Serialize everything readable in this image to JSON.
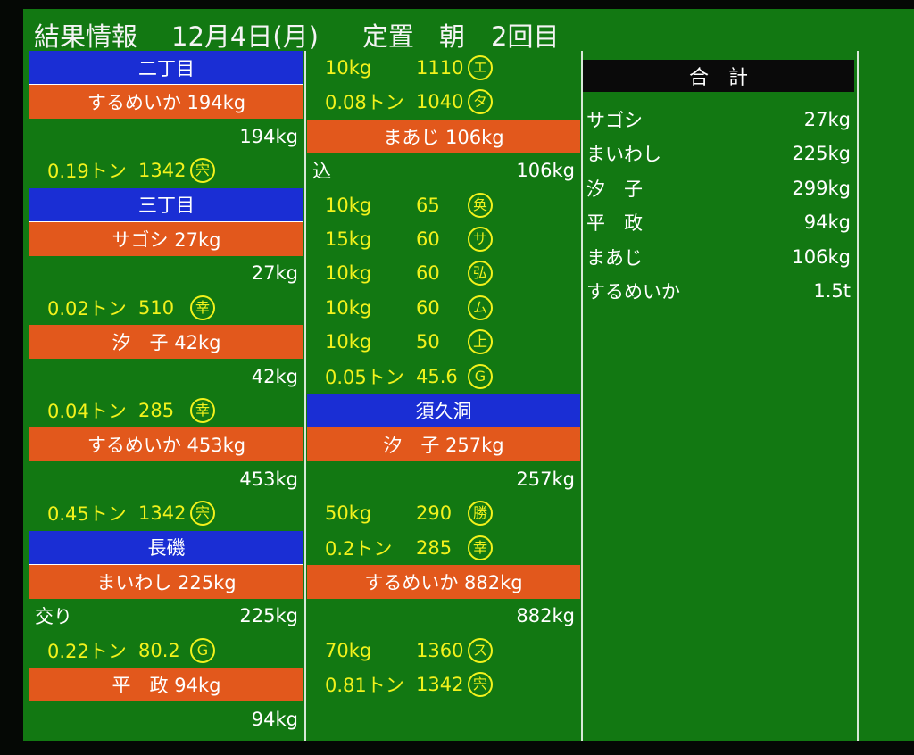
{
  "header": {
    "title": "結果情報",
    "date": "12月4日(月)",
    "method": "定置",
    "time": "朝",
    "round": "2回目"
  },
  "columns": [
    {
      "rows": [
        {
          "section": "二丁目"
        },
        {
          "item": "するめいか 194kg"
        },
        {
          "total": "194kg"
        },
        {
          "qty": "0.19トン",
          "price": "1342",
          "mark": "宍"
        },
        {
          "section": "三丁目"
        },
        {
          "item": "サゴシ 27kg"
        },
        {
          "total": "27kg"
        },
        {
          "qty": "0.02トン",
          "price": "510",
          "mark": "幸"
        },
        {
          "item": "汐　子 42kg"
        },
        {
          "total": "42kg"
        },
        {
          "qty": "0.04トン",
          "price": "285",
          "mark": "幸"
        },
        {
          "item": "するめいか 453kg"
        },
        {
          "total": "453kg"
        },
        {
          "qty": "0.45トン",
          "price": "1342",
          "mark": "宍"
        },
        {
          "section": "長磯"
        },
        {
          "item": "まいわし 225kg"
        },
        {
          "total": "225kg",
          "note": "交り"
        },
        {
          "qty": "0.22トン",
          "price": "80.2",
          "mark": "G"
        },
        {
          "item": "平　政 94kg"
        },
        {
          "total": "94kg"
        }
      ]
    },
    {
      "rows": [
        {
          "qty": "10kg",
          "price": "1110",
          "mark": "エ"
        },
        {
          "qty": "0.08トン",
          "price": "1040",
          "mark": "タ"
        },
        {
          "item": "まあじ 106kg"
        },
        {
          "total": "106kg",
          "note": "込"
        },
        {
          "qty": "10kg",
          "price": "65",
          "mark": "奂"
        },
        {
          "qty": "15kg",
          "price": "60",
          "mark": "サ"
        },
        {
          "qty": "10kg",
          "price": "60",
          "mark": "弘"
        },
        {
          "qty": "10kg",
          "price": "60",
          "mark": "ム"
        },
        {
          "qty": "10kg",
          "price": "50",
          "mark": "上"
        },
        {
          "qty": "0.05トン",
          "price": "45.6",
          "mark": "G"
        },
        {
          "section": "須久洞"
        },
        {
          "item": "汐　子 257kg"
        },
        {
          "total": "257kg"
        },
        {
          "qty": "50kg",
          "price": "290",
          "mark": "勝"
        },
        {
          "qty": "0.2トン",
          "price": "285",
          "mark": "幸"
        },
        {
          "item": "するめいか 882kg"
        },
        {
          "total": "882kg"
        },
        {
          "qty": "70kg",
          "price": "1360",
          "mark": "ス"
        },
        {
          "qty": "0.81トン",
          "price": "1342",
          "mark": "宍"
        }
      ]
    }
  ],
  "summary": {
    "title": "合　計",
    "rows": [
      [
        "サゴシ",
        "27kg"
      ],
      [
        "まいわし",
        "225kg"
      ],
      [
        "汐　子",
        "299kg"
      ],
      [
        "平　政",
        "94kg"
      ],
      [
        "まあじ",
        "106kg"
      ],
      [
        "するめいか",
        "1.5t"
      ]
    ]
  }
}
